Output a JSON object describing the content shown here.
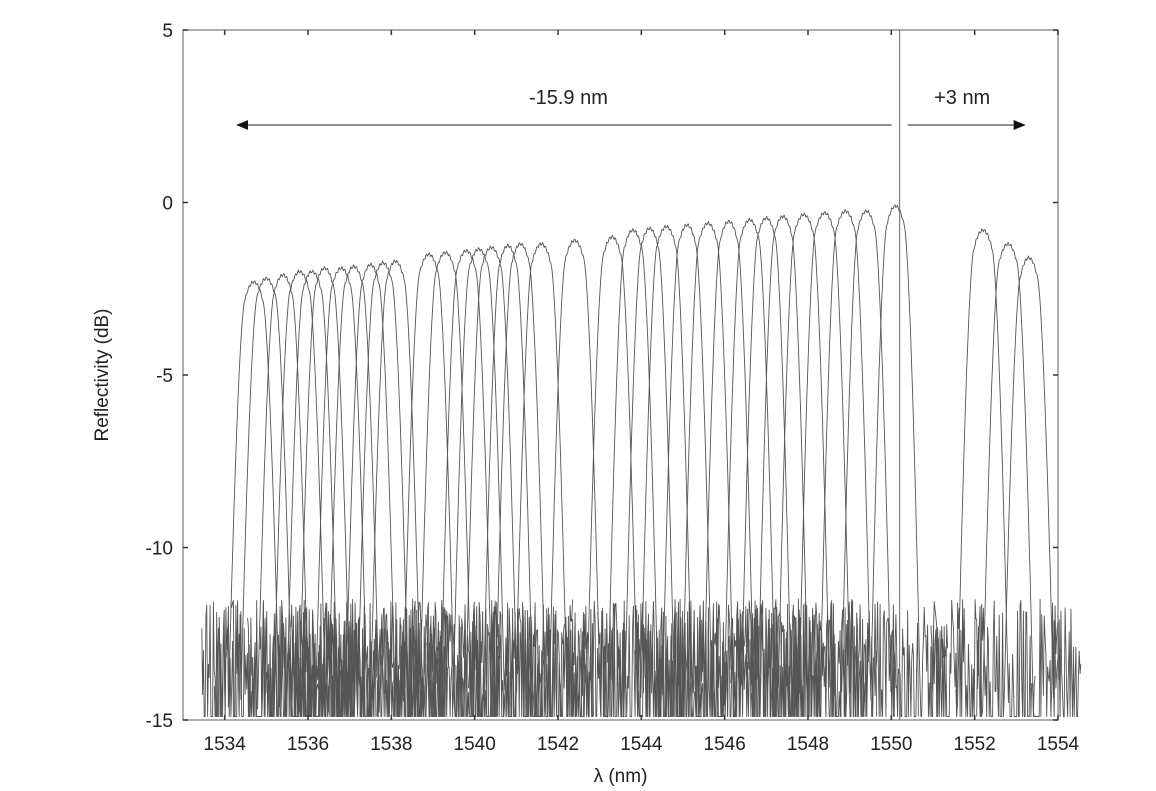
{
  "chart_data": {
    "type": "line",
    "title": "",
    "xlabel": "λ (nm)",
    "ylabel": "Reflectivity (dB)",
    "xlim": [
      1533,
      1554
    ],
    "ylim": [
      -15,
      5
    ],
    "xticks": [
      1534,
      1536,
      1538,
      1540,
      1542,
      1544,
      1546,
      1548,
      1550,
      1552,
      1554
    ],
    "xtick_labels": [
      "1534",
      "1536",
      "1538",
      "1540",
      "1542",
      "1544",
      "1546",
      "1548",
      "1550",
      "1552",
      "1554"
    ],
    "yticks": [
      5,
      0,
      -5,
      -10,
      -15
    ],
    "ytick_labels": [
      "5",
      "0",
      "-5",
      "-10",
      "-15"
    ],
    "grid": false,
    "legend": "none",
    "reference_wavelength": 1550.2,
    "series": [
      {
        "peak_x": 1534.7,
        "peak_y": -2.3
      },
      {
        "peak_x": 1535.0,
        "peak_y": -2.2
      },
      {
        "peak_x": 1535.4,
        "peak_y": -2.1
      },
      {
        "peak_x": 1535.8,
        "peak_y": -2.0
      },
      {
        "peak_x": 1536.1,
        "peak_y": -2.0
      },
      {
        "peak_x": 1536.4,
        "peak_y": -1.9
      },
      {
        "peak_x": 1536.8,
        "peak_y": -1.9
      },
      {
        "peak_x": 1537.1,
        "peak_y": -1.85
      },
      {
        "peak_x": 1537.5,
        "peak_y": -1.8
      },
      {
        "peak_x": 1537.8,
        "peak_y": -1.75
      },
      {
        "peak_x": 1538.1,
        "peak_y": -1.7
      },
      {
        "peak_x": 1538.9,
        "peak_y": -1.5
      },
      {
        "peak_x": 1539.3,
        "peak_y": -1.45
      },
      {
        "peak_x": 1539.8,
        "peak_y": -1.4
      },
      {
        "peak_x": 1540.1,
        "peak_y": -1.35
      },
      {
        "peak_x": 1540.4,
        "peak_y": -1.3
      },
      {
        "peak_x": 1540.8,
        "peak_y": -1.25
      },
      {
        "peak_x": 1541.1,
        "peak_y": -1.2
      },
      {
        "peak_x": 1541.6,
        "peak_y": -1.2
      },
      {
        "peak_x": 1542.4,
        "peak_y": -1.1
      },
      {
        "peak_x": 1543.3,
        "peak_y": -1.0
      },
      {
        "peak_x": 1543.8,
        "peak_y": -0.8
      },
      {
        "peak_x": 1544.2,
        "peak_y": -0.75
      },
      {
        "peak_x": 1544.6,
        "peak_y": -0.7
      },
      {
        "peak_x": 1545.1,
        "peak_y": -0.65
      },
      {
        "peak_x": 1545.6,
        "peak_y": -0.6
      },
      {
        "peak_x": 1546.1,
        "peak_y": -0.55
      },
      {
        "peak_x": 1546.6,
        "peak_y": -0.5
      },
      {
        "peak_x": 1547.0,
        "peak_y": -0.45
      },
      {
        "peak_x": 1547.4,
        "peak_y": -0.4
      },
      {
        "peak_x": 1547.9,
        "peak_y": -0.35
      },
      {
        "peak_x": 1548.4,
        "peak_y": -0.3
      },
      {
        "peak_x": 1548.9,
        "peak_y": -0.25
      },
      {
        "peak_x": 1549.4,
        "peak_y": -0.25
      },
      {
        "peak_x": 1550.1,
        "peak_y": -0.1
      },
      {
        "peak_x": 1552.2,
        "peak_y": -0.8
      },
      {
        "peak_x": 1552.8,
        "peak_y": -1.2
      },
      {
        "peak_x": 1553.3,
        "peak_y": -1.6
      }
    ],
    "annotations": [
      {
        "text": "-15.9 nm",
        "from_x": 1550.2,
        "to_x": 1534.3
      },
      {
        "text": "+3 nm",
        "from_x": 1550.2,
        "to_x": 1553.2
      }
    ]
  }
}
